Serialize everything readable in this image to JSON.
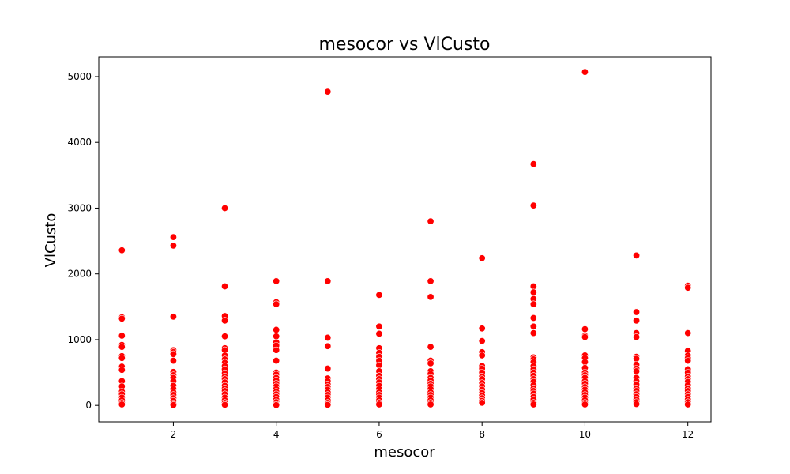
{
  "chart_data": {
    "type": "scatter",
    "title": "mesocor vs VlCusto",
    "xlabel": "mesocor",
    "ylabel": "VlCusto",
    "xlim": [
      0.55,
      12.45
    ],
    "ylim": [
      -250,
      5300
    ],
    "xticks": [
      2,
      4,
      6,
      8,
      10,
      12
    ],
    "yticks": [
      0,
      1000,
      2000,
      3000,
      4000,
      5000
    ],
    "grid": false,
    "point_color": "#ff0000",
    "points": [
      {
        "x": 1,
        "y": 2360
      },
      {
        "x": 1,
        "y": 1340
      },
      {
        "x": 1,
        "y": 1320
      },
      {
        "x": 1,
        "y": 1060
      },
      {
        "x": 1,
        "y": 920
      },
      {
        "x": 1,
        "y": 890
      },
      {
        "x": 1,
        "y": 750
      },
      {
        "x": 1,
        "y": 720
      },
      {
        "x": 1,
        "y": 590
      },
      {
        "x": 1,
        "y": 540
      },
      {
        "x": 1,
        "y": 370
      },
      {
        "x": 1,
        "y": 290
      },
      {
        "x": 1,
        "y": 210
      },
      {
        "x": 1,
        "y": 170
      },
      {
        "x": 1,
        "y": 120
      },
      {
        "x": 1,
        "y": 80
      },
      {
        "x": 1,
        "y": 40
      },
      {
        "x": 1,
        "y": 15
      },
      {
        "x": 2,
        "y": 2560
      },
      {
        "x": 2,
        "y": 2430
      },
      {
        "x": 2,
        "y": 1350
      },
      {
        "x": 2,
        "y": 840
      },
      {
        "x": 2,
        "y": 810
      },
      {
        "x": 2,
        "y": 780
      },
      {
        "x": 2,
        "y": 680
      },
      {
        "x": 2,
        "y": 510
      },
      {
        "x": 2,
        "y": 460
      },
      {
        "x": 2,
        "y": 420
      },
      {
        "x": 2,
        "y": 370
      },
      {
        "x": 2,
        "y": 300
      },
      {
        "x": 2,
        "y": 250
      },
      {
        "x": 2,
        "y": 200
      },
      {
        "x": 2,
        "y": 160
      },
      {
        "x": 2,
        "y": 110
      },
      {
        "x": 2,
        "y": 70
      },
      {
        "x": 2,
        "y": 30
      },
      {
        "x": 2,
        "y": 5
      },
      {
        "x": 3,
        "y": 3000
      },
      {
        "x": 3,
        "y": 1810
      },
      {
        "x": 3,
        "y": 1360
      },
      {
        "x": 3,
        "y": 1290
      },
      {
        "x": 3,
        "y": 1050
      },
      {
        "x": 3,
        "y": 870
      },
      {
        "x": 3,
        "y": 840
      },
      {
        "x": 3,
        "y": 760
      },
      {
        "x": 3,
        "y": 700
      },
      {
        "x": 3,
        "y": 650
      },
      {
        "x": 3,
        "y": 600
      },
      {
        "x": 3,
        "y": 550
      },
      {
        "x": 3,
        "y": 490
      },
      {
        "x": 3,
        "y": 440
      },
      {
        "x": 3,
        "y": 400
      },
      {
        "x": 3,
        "y": 350
      },
      {
        "x": 3,
        "y": 300
      },
      {
        "x": 3,
        "y": 260
      },
      {
        "x": 3,
        "y": 220
      },
      {
        "x": 3,
        "y": 170
      },
      {
        "x": 3,
        "y": 120
      },
      {
        "x": 3,
        "y": 80
      },
      {
        "x": 3,
        "y": 40
      },
      {
        "x": 3,
        "y": 10
      },
      {
        "x": 4,
        "y": 1890
      },
      {
        "x": 4,
        "y": 1570
      },
      {
        "x": 4,
        "y": 1540
      },
      {
        "x": 4,
        "y": 1150
      },
      {
        "x": 4,
        "y": 1050
      },
      {
        "x": 4,
        "y": 960
      },
      {
        "x": 4,
        "y": 910
      },
      {
        "x": 4,
        "y": 840
      },
      {
        "x": 4,
        "y": 680
      },
      {
        "x": 4,
        "y": 500
      },
      {
        "x": 4,
        "y": 470
      },
      {
        "x": 4,
        "y": 420
      },
      {
        "x": 4,
        "y": 380
      },
      {
        "x": 4,
        "y": 330
      },
      {
        "x": 4,
        "y": 290
      },
      {
        "x": 4,
        "y": 250
      },
      {
        "x": 4,
        "y": 210
      },
      {
        "x": 4,
        "y": 170
      },
      {
        "x": 4,
        "y": 130
      },
      {
        "x": 4,
        "y": 90
      },
      {
        "x": 4,
        "y": 50
      },
      {
        "x": 4,
        "y": 20
      },
      {
        "x": 4,
        "y": 5
      },
      {
        "x": 5,
        "y": 4770
      },
      {
        "x": 5,
        "y": 1890
      },
      {
        "x": 5,
        "y": 1030
      },
      {
        "x": 5,
        "y": 900
      },
      {
        "x": 5,
        "y": 560
      },
      {
        "x": 5,
        "y": 410
      },
      {
        "x": 5,
        "y": 370
      },
      {
        "x": 5,
        "y": 320
      },
      {
        "x": 5,
        "y": 280
      },
      {
        "x": 5,
        "y": 240
      },
      {
        "x": 5,
        "y": 200
      },
      {
        "x": 5,
        "y": 160
      },
      {
        "x": 5,
        "y": 120
      },
      {
        "x": 5,
        "y": 80
      },
      {
        "x": 5,
        "y": 40
      },
      {
        "x": 5,
        "y": 10
      },
      {
        "x": 6,
        "y": 1680
      },
      {
        "x": 6,
        "y": 1200
      },
      {
        "x": 6,
        "y": 1090
      },
      {
        "x": 6,
        "y": 870
      },
      {
        "x": 6,
        "y": 800
      },
      {
        "x": 6,
        "y": 740
      },
      {
        "x": 6,
        "y": 680
      },
      {
        "x": 6,
        "y": 610
      },
      {
        "x": 6,
        "y": 520
      },
      {
        "x": 6,
        "y": 450
      },
      {
        "x": 6,
        "y": 400
      },
      {
        "x": 6,
        "y": 350
      },
      {
        "x": 6,
        "y": 300
      },
      {
        "x": 6,
        "y": 250
      },
      {
        "x": 6,
        "y": 200
      },
      {
        "x": 6,
        "y": 160
      },
      {
        "x": 6,
        "y": 120
      },
      {
        "x": 6,
        "y": 80
      },
      {
        "x": 6,
        "y": 40
      },
      {
        "x": 6,
        "y": 15
      },
      {
        "x": 7,
        "y": 2800
      },
      {
        "x": 7,
        "y": 1890
      },
      {
        "x": 7,
        "y": 1650
      },
      {
        "x": 7,
        "y": 890
      },
      {
        "x": 7,
        "y": 680
      },
      {
        "x": 7,
        "y": 640
      },
      {
        "x": 7,
        "y": 520
      },
      {
        "x": 7,
        "y": 480
      },
      {
        "x": 7,
        "y": 420
      },
      {
        "x": 7,
        "y": 380
      },
      {
        "x": 7,
        "y": 330
      },
      {
        "x": 7,
        "y": 290
      },
      {
        "x": 7,
        "y": 250
      },
      {
        "x": 7,
        "y": 200
      },
      {
        "x": 7,
        "y": 160
      },
      {
        "x": 7,
        "y": 120
      },
      {
        "x": 7,
        "y": 80
      },
      {
        "x": 7,
        "y": 40
      },
      {
        "x": 7,
        "y": 15
      },
      {
        "x": 8,
        "y": 2240
      },
      {
        "x": 8,
        "y": 1170
      },
      {
        "x": 8,
        "y": 980
      },
      {
        "x": 8,
        "y": 810
      },
      {
        "x": 8,
        "y": 760
      },
      {
        "x": 8,
        "y": 600
      },
      {
        "x": 8,
        "y": 560
      },
      {
        "x": 8,
        "y": 500
      },
      {
        "x": 8,
        "y": 440
      },
      {
        "x": 8,
        "y": 400
      },
      {
        "x": 8,
        "y": 340
      },
      {
        "x": 8,
        "y": 290
      },
      {
        "x": 8,
        "y": 240
      },
      {
        "x": 8,
        "y": 190
      },
      {
        "x": 8,
        "y": 150
      },
      {
        "x": 8,
        "y": 110
      },
      {
        "x": 8,
        "y": 70
      },
      {
        "x": 8,
        "y": 40
      },
      {
        "x": 9,
        "y": 3670
      },
      {
        "x": 9,
        "y": 3040
      },
      {
        "x": 9,
        "y": 1810
      },
      {
        "x": 9,
        "y": 1720
      },
      {
        "x": 9,
        "y": 1620
      },
      {
        "x": 9,
        "y": 1540
      },
      {
        "x": 9,
        "y": 1330
      },
      {
        "x": 9,
        "y": 1200
      },
      {
        "x": 9,
        "y": 1100
      },
      {
        "x": 9,
        "y": 730
      },
      {
        "x": 9,
        "y": 700
      },
      {
        "x": 9,
        "y": 660
      },
      {
        "x": 9,
        "y": 600
      },
      {
        "x": 9,
        "y": 550
      },
      {
        "x": 9,
        "y": 500
      },
      {
        "x": 9,
        "y": 450
      },
      {
        "x": 9,
        "y": 400
      },
      {
        "x": 9,
        "y": 360
      },
      {
        "x": 9,
        "y": 310
      },
      {
        "x": 9,
        "y": 260
      },
      {
        "x": 9,
        "y": 220
      },
      {
        "x": 9,
        "y": 180
      },
      {
        "x": 9,
        "y": 130
      },
      {
        "x": 9,
        "y": 90
      },
      {
        "x": 9,
        "y": 40
      },
      {
        "x": 9,
        "y": 15
      },
      {
        "x": 10,
        "y": 5070
      },
      {
        "x": 10,
        "y": 1160
      },
      {
        "x": 10,
        "y": 1060
      },
      {
        "x": 10,
        "y": 1040
      },
      {
        "x": 10,
        "y": 760
      },
      {
        "x": 10,
        "y": 720
      },
      {
        "x": 10,
        "y": 660
      },
      {
        "x": 10,
        "y": 570
      },
      {
        "x": 10,
        "y": 500
      },
      {
        "x": 10,
        "y": 460
      },
      {
        "x": 10,
        "y": 420
      },
      {
        "x": 10,
        "y": 370
      },
      {
        "x": 10,
        "y": 330
      },
      {
        "x": 10,
        "y": 280
      },
      {
        "x": 10,
        "y": 240
      },
      {
        "x": 10,
        "y": 200
      },
      {
        "x": 10,
        "y": 160
      },
      {
        "x": 10,
        "y": 120
      },
      {
        "x": 10,
        "y": 80
      },
      {
        "x": 10,
        "y": 40
      },
      {
        "x": 10,
        "y": 15
      },
      {
        "x": 11,
        "y": 2280
      },
      {
        "x": 11,
        "y": 1420
      },
      {
        "x": 11,
        "y": 1290
      },
      {
        "x": 11,
        "y": 1100
      },
      {
        "x": 11,
        "y": 1040
      },
      {
        "x": 11,
        "y": 740
      },
      {
        "x": 11,
        "y": 710
      },
      {
        "x": 11,
        "y": 620
      },
      {
        "x": 11,
        "y": 560
      },
      {
        "x": 11,
        "y": 520
      },
      {
        "x": 11,
        "y": 420
      },
      {
        "x": 11,
        "y": 370
      },
      {
        "x": 11,
        "y": 320
      },
      {
        "x": 11,
        "y": 260
      },
      {
        "x": 11,
        "y": 220
      },
      {
        "x": 11,
        "y": 170
      },
      {
        "x": 11,
        "y": 130
      },
      {
        "x": 11,
        "y": 90
      },
      {
        "x": 11,
        "y": 50
      },
      {
        "x": 11,
        "y": 20
      },
      {
        "x": 12,
        "y": 1820
      },
      {
        "x": 12,
        "y": 1790
      },
      {
        "x": 12,
        "y": 1100
      },
      {
        "x": 12,
        "y": 830
      },
      {
        "x": 12,
        "y": 760
      },
      {
        "x": 12,
        "y": 720
      },
      {
        "x": 12,
        "y": 680
      },
      {
        "x": 12,
        "y": 550
      },
      {
        "x": 12,
        "y": 500
      },
      {
        "x": 12,
        "y": 440
      },
      {
        "x": 12,
        "y": 400
      },
      {
        "x": 12,
        "y": 360
      },
      {
        "x": 12,
        "y": 310
      },
      {
        "x": 12,
        "y": 260
      },
      {
        "x": 12,
        "y": 220
      },
      {
        "x": 12,
        "y": 170
      },
      {
        "x": 12,
        "y": 130
      },
      {
        "x": 12,
        "y": 90
      },
      {
        "x": 12,
        "y": 50
      },
      {
        "x": 12,
        "y": 15
      }
    ]
  }
}
